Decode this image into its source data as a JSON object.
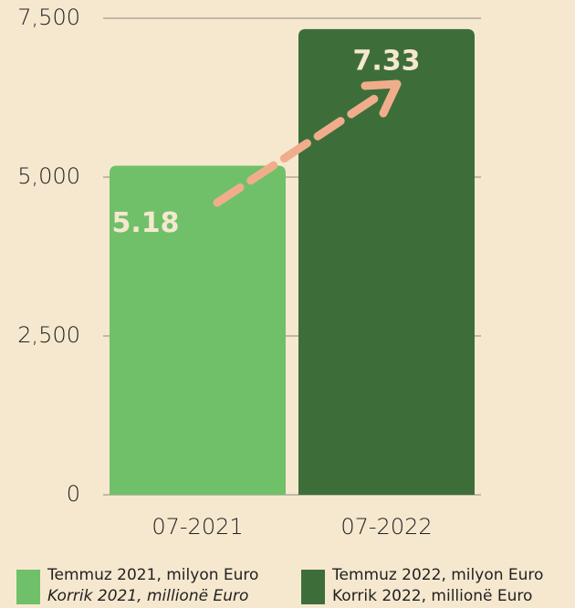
{
  "chart_data": {
    "type": "bar",
    "categories": [
      "07-2021",
      "07-2022"
    ],
    "values": [
      5180,
      7330
    ],
    "value_labels": [
      "5.18",
      "7.33"
    ],
    "colors": [
      "#70c06a",
      "#3d6e3a"
    ],
    "ylim": [
      0,
      7500
    ],
    "yticks": [
      0,
      {
        "value": 2500,
        "label": "2,500"
      },
      {
        "value": 5000,
        "label": "5,000"
      },
      {
        "value": 7500,
        "label": "7,500"
      }
    ],
    "grid": true,
    "legend": [
      {
        "label": "Temmuz 2021, milyon Euro",
        "label2": "Korrik 2021, millionë Euro",
        "color": "#70c06a"
      },
      {
        "label": "Temmuz 2022, milyon Euro",
        "label2": "Korrik 2022, millionë Euro",
        "color": "#3d6e3a"
      }
    ]
  }
}
